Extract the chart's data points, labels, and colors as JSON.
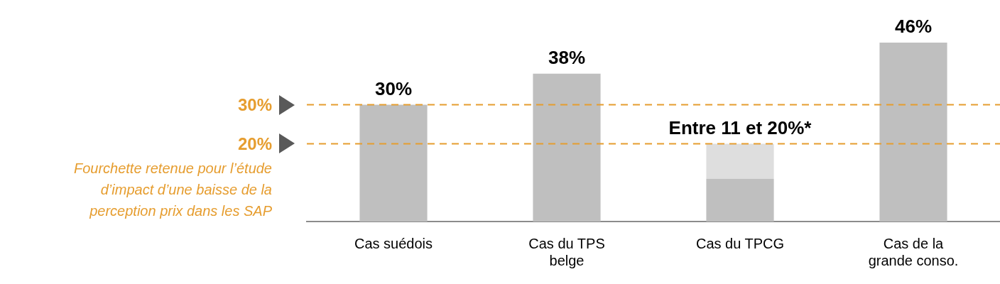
{
  "chart_data": {
    "type": "bar",
    "categories": [
      "Cas suédois",
      "Cas du TPS belge",
      "Cas du TPCG",
      "Cas de la grande conso."
    ],
    "stacked": true,
    "series": [
      {
        "color": "#bfbfbf",
        "values": [
          30,
          38,
          11,
          46
        ],
        "value_labels": [
          "30%",
          "38%",
          null,
          "46%"
        ]
      },
      {
        "color": "#dedede",
        "values": [
          null,
          null,
          9,
          null
        ]
      }
    ],
    "ref_lines": [
      {
        "axis": "y",
        "value": 30,
        "label": "30%",
        "color": "#e69d2f",
        "line_style": "dashed"
      },
      {
        "axis": "y",
        "value": 20,
        "label": "20%",
        "color": "#e69d2f",
        "line_style": "dashed"
      }
    ],
    "annotations": [
      {
        "text": "Entre 11 et 20%*",
        "x": "Cas du TPCG",
        "y": 20
      },
      "Fourchette retenue pour l’étude d’impact d’une baisse de la perception prix dans les SAP"
    ]
  }
}
